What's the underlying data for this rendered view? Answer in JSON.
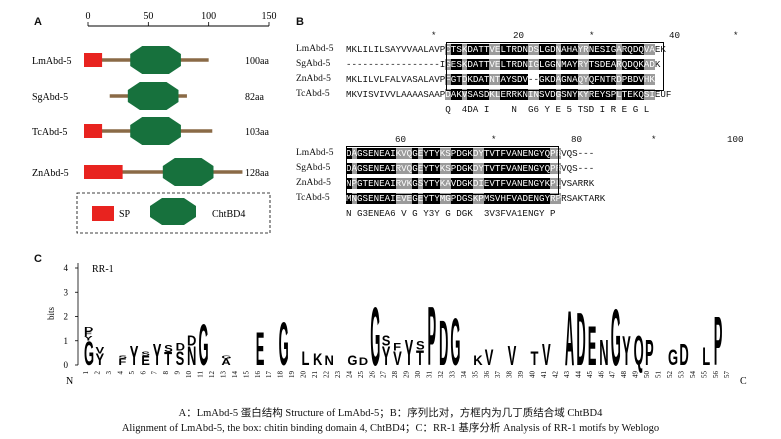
{
  "panel_a": {
    "letter": "A",
    "scale_ticks": [
      "0",
      "50",
      "100",
      "150"
    ],
    "proteins": [
      {
        "name": "LmAbd-5",
        "length": "100aa",
        "aa": 100,
        "sp": [
          0,
          15
        ],
        "domain": [
          35,
          77
        ]
      },
      {
        "name": "SgAbd-5",
        "length": "82aa",
        "aa": 82,
        "sp": null,
        "domain": [
          33,
          75
        ],
        "start": 18
      },
      {
        "name": "TcAbd-5",
        "length": "103aa",
        "aa": 103,
        "sp": [
          0,
          15
        ],
        "domain": [
          35,
          77
        ]
      },
      {
        "name": "ZnAbd-5",
        "length": "128aa",
        "aa": 128,
        "sp": [
          0,
          32
        ],
        "domain": [
          62,
          104
        ]
      }
    ],
    "legend": {
      "sp": "SP",
      "domain": "ChtBD4"
    },
    "colors": {
      "sp": "#e8231f",
      "domain": "#17713d",
      "line": "#8a6a46"
    }
  },
  "panel_b": {
    "letter": "B",
    "block1": {
      "ruler": [
        "*",
        "20",
        "*",
        "40",
        "*"
      ],
      "rows": [
        {
          "name": "LmAbd-5",
          "seq": "MKLILILSAYVVAALAVPCTSKDATTVELTRDNDSLGDNAHAYRNESIGARQDQVAEK"
        },
        {
          "name": "SgAbd-5",
          "seq": "-----------------IGESKDATTVELTRDNIGLGGNMAYRYTSDEARQDQKADK"
        },
        {
          "name": "ZnAbd-5",
          "seq": "MKLILVLFALVASALAVPFGTDKDATNTAYSDV--GKDAGNAQYQFNTRDPBDVHK"
        },
        {
          "name": "TcAbd-5",
          "seq": "MKVISVIVVLAAAASAAPDAKVSASDKLERRKNINSVDGSNYKYREYSPLTEKQSIEUF"
        }
      ],
      "consensus": "                  Q  4DA I    N  G6 Y E 5 TSD I R E G L"
    },
    "block2": {
      "ruler": [
        "60",
        "*",
        "80",
        "*",
        "100"
      ],
      "rows": [
        {
          "name": "LmAbd-5",
          "seq": "DAGSENEAIKVQGEYTYKSPDGKDYTVTFVANENGYQPRVQS---"
        },
        {
          "name": "SgAbd-5",
          "seq": "DAGSENEAIRVQGEYTYKSPDGKDYTVTFVANENGYQPRVQS---"
        },
        {
          "name": "ZnAbd-5",
          "seq": "NPGTENEAIRVKGSYTYKAVDGKDIEVTFVANENGYKPLVSARRK"
        },
        {
          "name": "TcAbd-5",
          "seq": "MNGSENEAIEVEGEYTYMGPDGSKPMSVHFVADENGYRPRSAKTARK"
        }
      ],
      "consensus": "N G3ENEA6 V G Y3Y G DGK  3V3FVA1ENGY P"
    }
  },
  "panel_c": {
    "letter": "C",
    "motif_name": "RR-1",
    "y_label": "bits",
    "y_ticks": [
      "0",
      "1",
      "2",
      "3",
      "4"
    ],
    "n_label": "N",
    "c_label": "C",
    "positions": [
      "1",
      "2",
      "3",
      "4",
      "5",
      "6",
      "7",
      "8",
      "9",
      "10",
      "11",
      "12",
      "13",
      "14",
      "15",
      "16",
      "17",
      "18",
      "19",
      "20",
      "21",
      "22",
      "23",
      "24",
      "25",
      "26",
      "27",
      "28",
      "29",
      "30",
      "31",
      "32",
      "33",
      "34",
      "35",
      "36",
      "37",
      "38",
      "39",
      "40",
      "41",
      "42",
      "43",
      "44",
      "45",
      "46",
      "47",
      "48",
      "49",
      "50",
      "51",
      "52",
      "53",
      "54",
      "55",
      "56",
      "57"
    ],
    "letters": [
      {
        "pos": 1,
        "stack": "G Y F D"
      },
      {
        "pos": 2,
        "stack": "Y V"
      },
      {
        "pos": 4,
        "stack": "F S"
      },
      {
        "pos": 5,
        "stack": "Y"
      },
      {
        "pos": 6,
        "stack": "E S"
      },
      {
        "pos": 7,
        "stack": "Y"
      },
      {
        "pos": 8,
        "stack": "T S"
      },
      {
        "pos": 9,
        "stack": "S D"
      },
      {
        "pos": 10,
        "stack": "N D"
      },
      {
        "pos": 11,
        "stack": "G"
      },
      {
        "pos": 13,
        "stack": "A G"
      },
      {
        "pos": 16,
        "stack": "E"
      },
      {
        "pos": 18,
        "stack": "G"
      },
      {
        "pos": 20,
        "stack": "L"
      },
      {
        "pos": 21,
        "stack": "K"
      },
      {
        "pos": 22,
        "stack": "N"
      },
      {
        "pos": 24,
        "stack": "G"
      },
      {
        "pos": 25,
        "stack": "D"
      },
      {
        "pos": 26,
        "stack": "G"
      },
      {
        "pos": 27,
        "stack": "Y S"
      },
      {
        "pos": 28,
        "stack": "V F"
      },
      {
        "pos": 29,
        "stack": "Y"
      },
      {
        "pos": 30,
        "stack": "T S"
      },
      {
        "pos": 31,
        "stack": "P"
      },
      {
        "pos": 32,
        "stack": "D"
      },
      {
        "pos": 33,
        "stack": "G"
      },
      {
        "pos": 35,
        "stack": "K"
      },
      {
        "pos": 36,
        "stack": "V"
      },
      {
        "pos": 38,
        "stack": "V"
      },
      {
        "pos": 40,
        "stack": "T"
      },
      {
        "pos": 41,
        "stack": "V"
      },
      {
        "pos": 43,
        "stack": "A"
      },
      {
        "pos": 44,
        "stack": "D"
      },
      {
        "pos": 45,
        "stack": "E"
      },
      {
        "pos": 46,
        "stack": "N"
      },
      {
        "pos": 47,
        "stack": "G"
      },
      {
        "pos": 48,
        "stack": "Y"
      },
      {
        "pos": 49,
        "stack": "Q"
      },
      {
        "pos": 50,
        "stack": "P"
      },
      {
        "pos": 52,
        "stack": "G"
      },
      {
        "pos": 53,
        "stack": "D"
      },
      {
        "pos": 55,
        "stack": "L"
      },
      {
        "pos": 56,
        "stack": "P"
      }
    ]
  },
  "caption": {
    "line1": "A：LmAbd-5 蛋白结构 Structure of LmAbd-5；B：序列比对，方框内为几丁质结合域 ChtBD4",
    "line2": "Alignment of LmAbd-5, the box: chitin binding domain 4, ChtBD4；C：RR-1 基序分析 Analysis of RR-1 motifs by Weblogo"
  }
}
